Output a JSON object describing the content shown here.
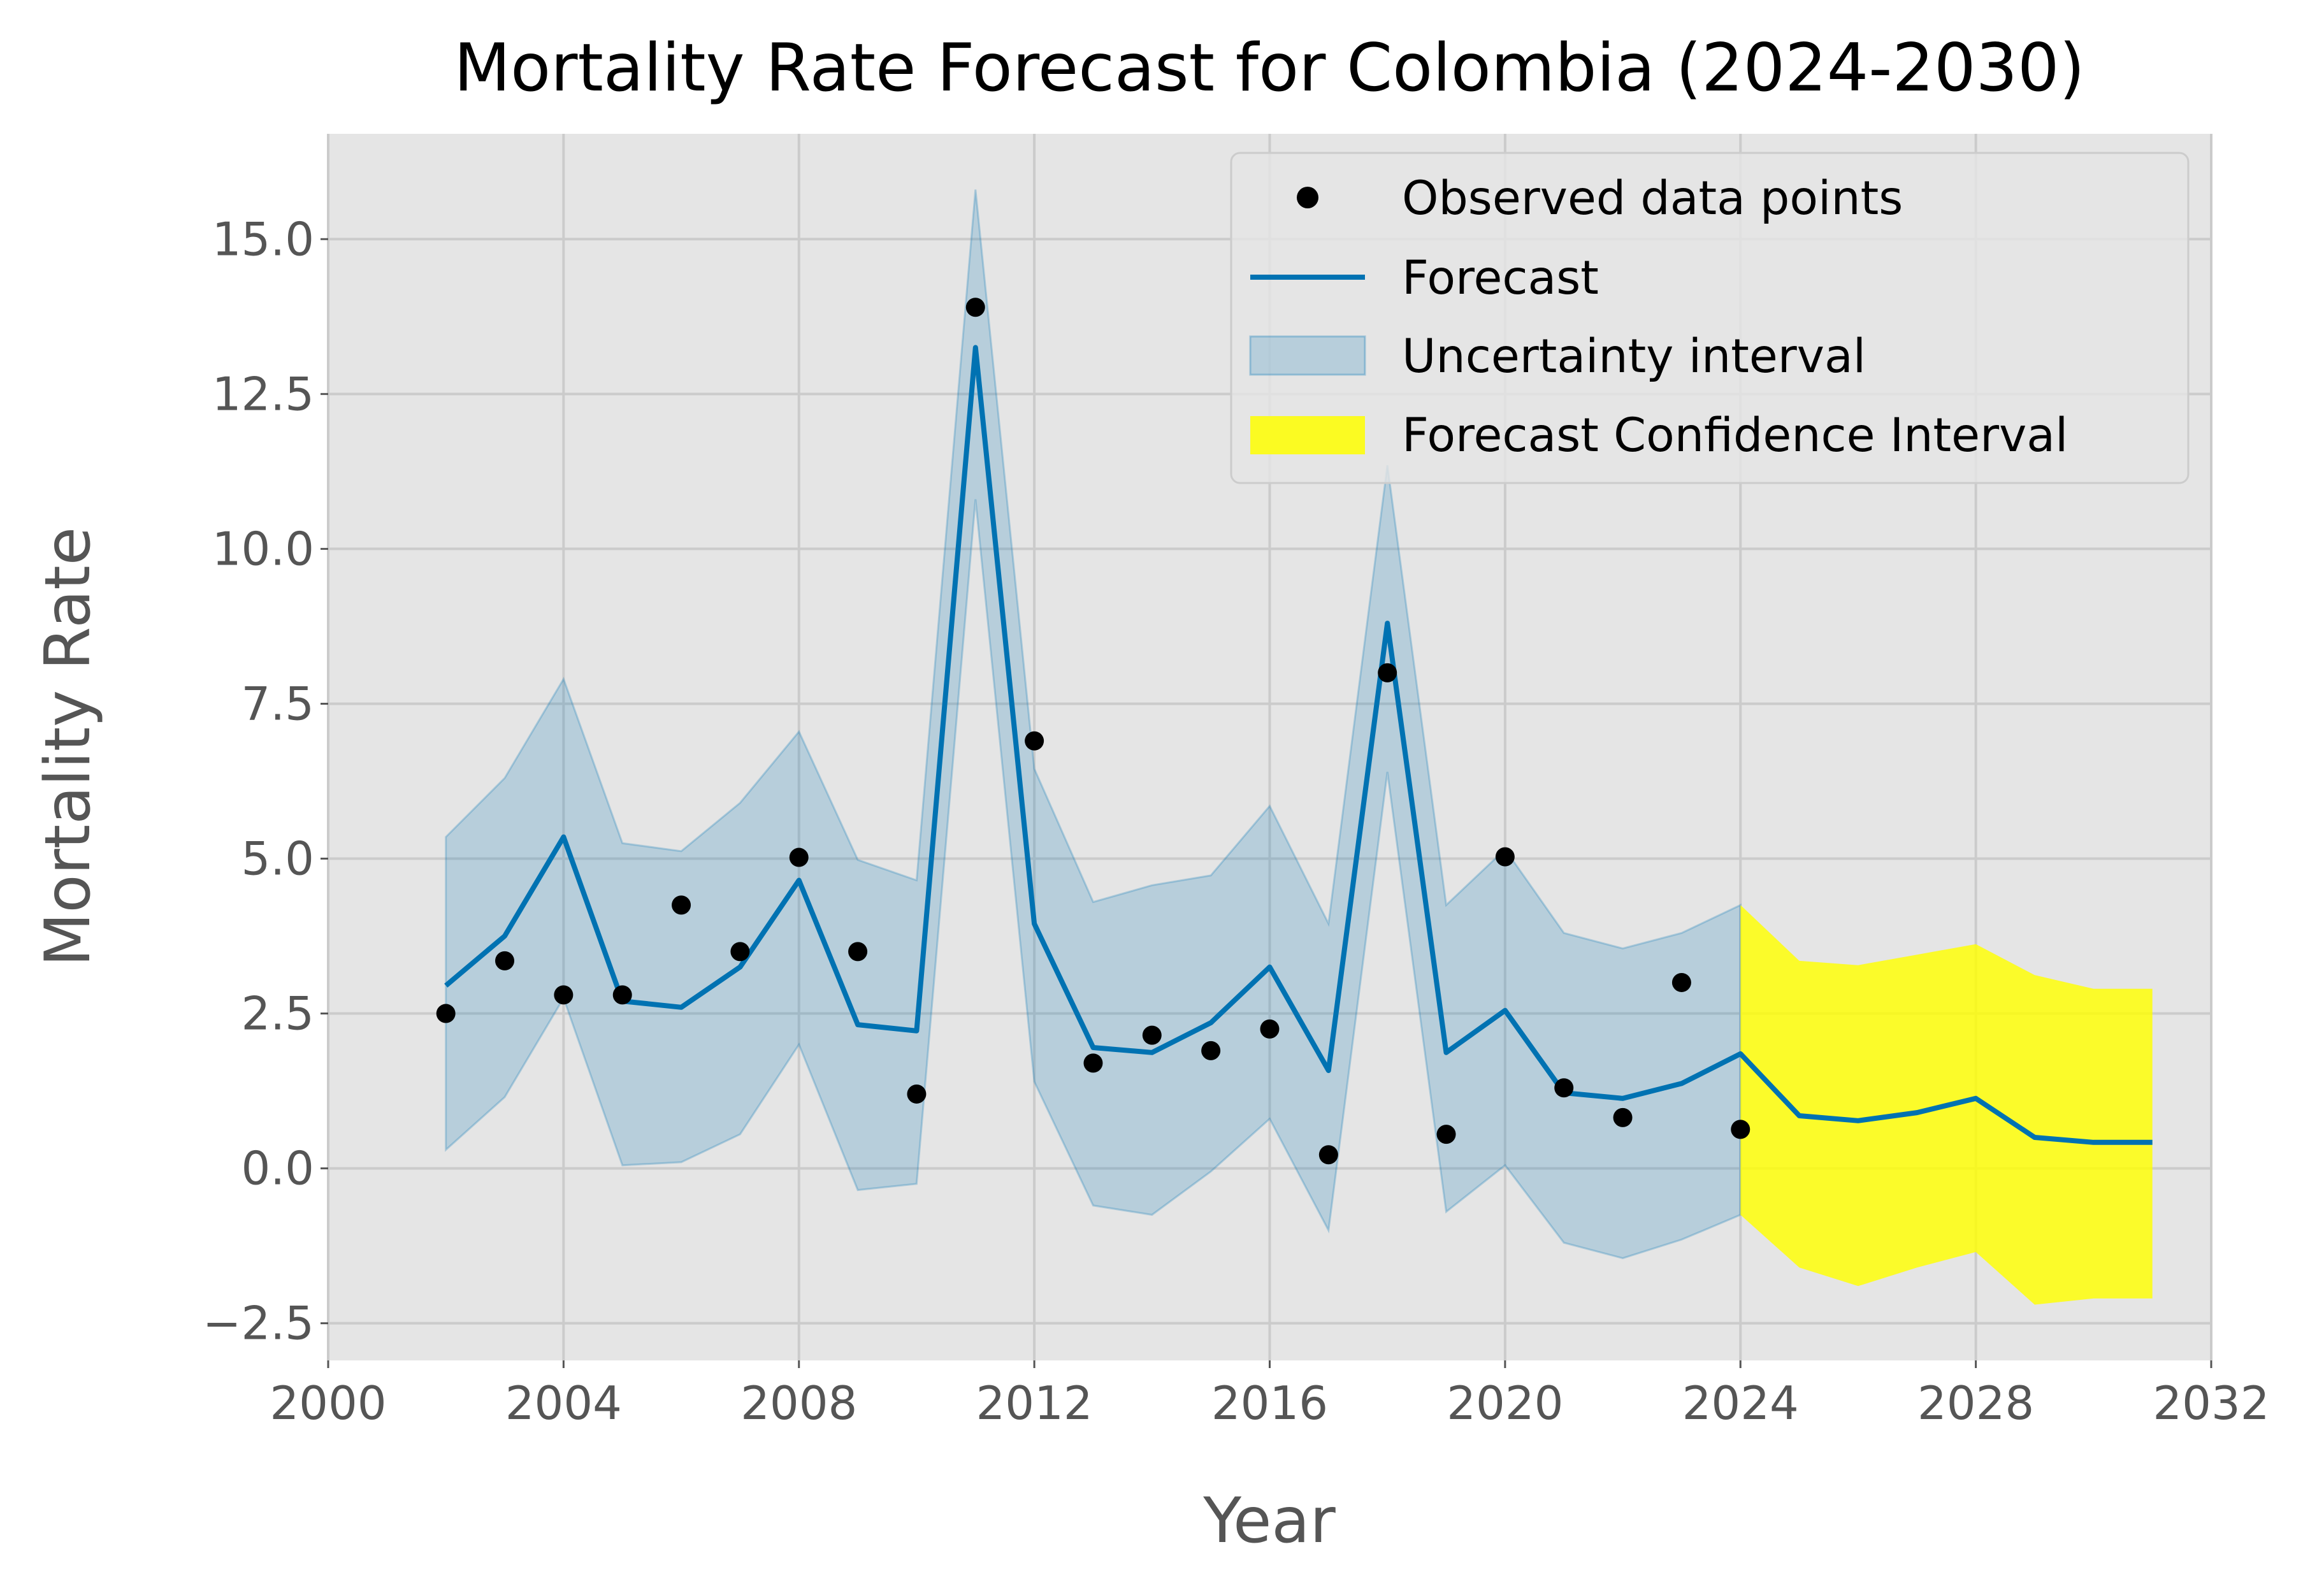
{
  "chart_data": {
    "type": "line",
    "title": "Mortality Rate Forecast for Colombia (2024-2030)",
    "xlabel": "Year",
    "ylabel": "Mortality Rate",
    "xlim": [
      2000,
      2032
    ],
    "ylim": [
      -3.1,
      16.7
    ],
    "xticks": [
      2000,
      2004,
      2008,
      2012,
      2016,
      2020,
      2024,
      2028,
      2032
    ],
    "yticks": [
      -2.5,
      0.0,
      2.5,
      5.0,
      7.5,
      10.0,
      12.5,
      15.0
    ],
    "ytick_labels": [
      "−2.5",
      "0.0",
      "2.5",
      "5.0",
      "7.5",
      "10.0",
      "12.5",
      "15.0"
    ],
    "grid": true,
    "legend_position": "upper right",
    "series": [
      {
        "name": "Observed data points",
        "kind": "scatter",
        "color": "#000000",
        "x": [
          2002,
          2003,
          2004,
          2005,
          2006,
          2007,
          2008,
          2009,
          2010,
          2011,
          2012,
          2013,
          2014,
          2015,
          2016,
          2017,
          2018,
          2019,
          2020,
          2021,
          2022,
          2023,
          2024
        ],
        "y": [
          2.5,
          3.35,
          2.8,
          2.8,
          4.25,
          3.5,
          5.02,
          3.5,
          1.2,
          13.9,
          6.9,
          1.7,
          2.15,
          1.9,
          2.25,
          0.22,
          8.0,
          0.55,
          5.03,
          1.3,
          0.82,
          3.0,
          0.63
        ]
      },
      {
        "name": "Forecast",
        "kind": "line",
        "color": "#0072B2",
        "x": [
          2002,
          2003,
          2004,
          2005,
          2006,
          2007,
          2008,
          2009,
          2010,
          2011,
          2012,
          2013,
          2014,
          2015,
          2016,
          2017,
          2018,
          2019,
          2020,
          2021,
          2022,
          2023,
          2024,
          2025,
          2026,
          2027,
          2028,
          2029,
          2030,
          2031
        ],
        "y": [
          2.95,
          3.75,
          5.35,
          2.7,
          2.6,
          3.25,
          4.65,
          2.32,
          2.22,
          13.25,
          3.95,
          1.95,
          1.87,
          2.35,
          3.25,
          1.58,
          8.8,
          1.87,
          2.55,
          1.22,
          1.13,
          1.37,
          1.85,
          0.85,
          0.77,
          0.9,
          1.13,
          0.5,
          0.42,
          0.42
        ]
      },
      {
        "name": "Uncertainty interval",
        "kind": "band",
        "color": "#0072B2",
        "x": [
          2002,
          2003,
          2004,
          2005,
          2006,
          2007,
          2008,
          2009,
          2010,
          2011,
          2012,
          2013,
          2014,
          2015,
          2016,
          2017,
          2018,
          2019,
          2020,
          2021,
          2022,
          2023,
          2024
        ],
        "lower": [
          0.3,
          1.15,
          2.75,
          0.05,
          0.1,
          0.55,
          2.0,
          -0.35,
          -0.25,
          10.8,
          1.4,
          -0.6,
          -0.75,
          -0.05,
          0.8,
          -1.0,
          6.4,
          -0.7,
          0.05,
          -1.2,
          -1.45,
          -1.15,
          -0.75
        ],
        "upper": [
          5.35,
          6.3,
          7.9,
          5.25,
          5.12,
          5.9,
          7.05,
          4.98,
          4.65,
          15.8,
          6.45,
          4.3,
          4.57,
          4.73,
          5.85,
          3.95,
          11.35,
          4.25,
          5.15,
          3.8,
          3.55,
          3.8,
          4.25
        ]
      },
      {
        "name": "Forecast Confidence Interval",
        "kind": "band",
        "color": "#FFFF00",
        "x": [
          2024,
          2025,
          2026,
          2027,
          2028,
          2029,
          2030,
          2031
        ],
        "lower": [
          -0.75,
          -1.6,
          -1.9,
          -1.6,
          -1.35,
          -2.2,
          -2.1,
          -2.1
        ],
        "upper": [
          4.25,
          3.35,
          3.28,
          3.45,
          3.62,
          3.12,
          2.9,
          2.9
        ]
      }
    ]
  }
}
